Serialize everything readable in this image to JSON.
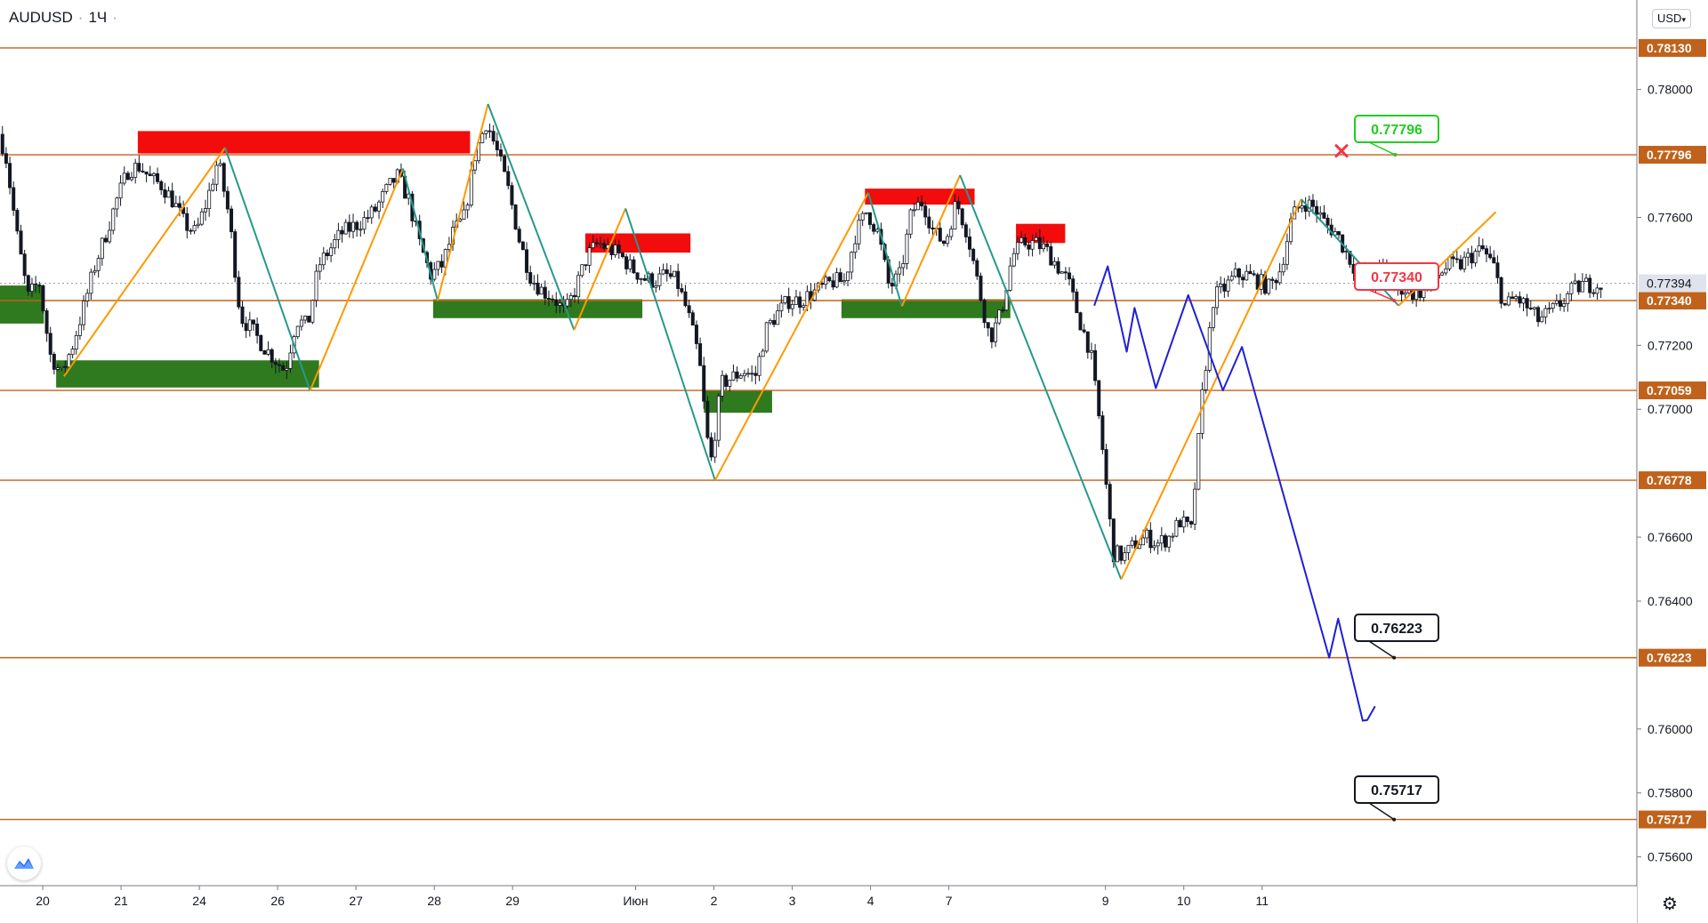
{
  "header": {
    "symbol": "AUDUSD",
    "interval": "1Ч",
    "currency": "USD"
  },
  "icons": {
    "settings": "gear-icon",
    "logo": "tradingview-logo-icon",
    "dropdown": "chevron-down-icon"
  },
  "chart_data": {
    "type": "candlestick",
    "ylim": [
      0.7551,
      0.7828
    ],
    "y_ticks": [
      "0.78000",
      "0.77600",
      "0.77200",
      "0.77000",
      "0.76600",
      "0.76400",
      "0.76000",
      "0.75800",
      "0.75600"
    ],
    "x_ticks": [
      "20",
      "21",
      "24",
      "26",
      "27",
      "28",
      "29",
      "Июн",
      "2",
      "3",
      "4",
      "7",
      "9",
      "10",
      "11"
    ],
    "colors": {
      "level": "#c0621b",
      "supply": "#f20c0c",
      "demand": "#2f7a1e",
      "up_wave": "#ff9800",
      "down_wave": "#26998a",
      "forecast": "#1f1fd6",
      "candle": "#131722"
    },
    "levels": [
      {
        "price": 0.7813,
        "label": "0.78130"
      },
      {
        "price": 0.77796,
        "label": "0.77796"
      },
      {
        "price": 0.7734,
        "label": "0.77340"
      },
      {
        "price": 0.77059,
        "label": "0.77059"
      },
      {
        "price": 0.76778,
        "label": "0.76778"
      },
      {
        "price": 0.76223,
        "label": "0.76223"
      },
      {
        "price": 0.75717,
        "label": "0.75717"
      }
    ],
    "current_price": {
      "price": 0.77394,
      "label": "0.77394"
    },
    "callouts": [
      {
        "text": "0.77796",
        "style": "green"
      },
      {
        "text": "0.77340",
        "style": "red"
      },
      {
        "text": "0.76223",
        "style": "black"
      },
      {
        "text": "0.75717",
        "style": "black"
      }
    ],
    "supply_zones": [
      {
        "from": 12.5,
        "to": 42.2,
        "high": 0.7787,
        "low": 0.778
      },
      {
        "from": 52.5,
        "to": 61.9,
        "high": 0.7755,
        "low": 0.7749
      },
      {
        "from": 77.5,
        "to": 87.3,
        "high": 0.7769,
        "low": 0.7764
      },
      {
        "from": 91.0,
        "to": 95.4,
        "high": 0.7758,
        "low": 0.7752
      }
    ],
    "demand_zones": [
      {
        "from": 0.0,
        "to": 4.1,
        "high": 0.77387,
        "low": 0.77268
      },
      {
        "from": 5.2,
        "to": 28.7,
        "high": 0.77153,
        "low": 0.77068
      },
      {
        "from": 38.9,
        "to": 57.6,
        "high": 0.77344,
        "low": 0.77285
      },
      {
        "from": 63.1,
        "to": 69.2,
        "high": 0.77059,
        "low": 0.76989
      },
      {
        "from": 75.4,
        "to": 90.5,
        "high": 0.77344,
        "low": 0.77285
      }
    ],
    "wave_points": [
      {
        "t": 5.9,
        "p": 0.77103
      },
      {
        "t": 20.3,
        "p": 0.77818
      },
      {
        "t": 27.9,
        "p": 0.77058
      },
      {
        "t": 36.2,
        "p": 0.77753
      },
      {
        "t": 39.3,
        "p": 0.7734
      },
      {
        "t": 43.8,
        "p": 0.77955
      },
      {
        "t": 51.5,
        "p": 0.77248
      },
      {
        "t": 56.1,
        "p": 0.77628
      },
      {
        "t": 64.1,
        "p": 0.76778
      },
      {
        "t": 77.8,
        "p": 0.77677
      },
      {
        "t": 80.8,
        "p": 0.77322
      },
      {
        "t": 86.0,
        "p": 0.77732
      },
      {
        "t": 90.5,
        "p": 0.7734
      },
      {
        "t": 100.4,
        "p": 0.76468
      },
      {
        "t": 116.5,
        "p": 0.77657
      },
      {
        "t": 125.2,
        "p": 0.77324
      },
      {
        "t": 133.9,
        "p": 0.77617
      }
    ],
    "forecast_path": [
      {
        "t": 98.0,
        "p": 0.77324
      },
      {
        "t": 99.2,
        "p": 0.77447
      },
      {
        "t": 100.9,
        "p": 0.7718
      },
      {
        "t": 101.6,
        "p": 0.77317
      },
      {
        "t": 103.5,
        "p": 0.77066
      },
      {
        "t": 106.4,
        "p": 0.77357
      },
      {
        "t": 109.5,
        "p": 0.77059
      },
      {
        "t": 111.2,
        "p": 0.77195
      },
      {
        "t": 119.0,
        "p": 0.76223
      },
      {
        "t": 119.8,
        "p": 0.76345
      },
      {
        "t": 122.0,
        "p": 0.76026
      },
      {
        "t": 122.4,
        "p": 0.76028
      },
      {
        "t": 123.1,
        "p": 0.76071
      }
    ],
    "price_series": [
      [
        0,
        0.779
      ],
      [
        1,
        0.778
      ],
      [
        2,
        0.7755
      ],
      [
        3,
        0.7735
      ],
      [
        4,
        0.774
      ],
      [
        5,
        0.7717
      ],
      [
        6,
        0.7711
      ],
      [
        7,
        0.772
      ],
      [
        8,
        0.7732
      ],
      [
        9,
        0.7745
      ],
      [
        10,
        0.7755
      ],
      [
        11,
        0.7766
      ],
      [
        12,
        0.7775
      ],
      [
        13,
        0.7776
      ],
      [
        14,
        0.7772
      ],
      [
        15,
        0.777
      ],
      [
        16,
        0.7765
      ],
      [
        17,
        0.7758
      ],
      [
        18,
        0.7755
      ],
      [
        19,
        0.7765
      ],
      [
        20,
        0.7778
      ],
      [
        21,
        0.776
      ],
      [
        22,
        0.7729
      ],
      [
        23,
        0.7725
      ],
      [
        24,
        0.772
      ],
      [
        25,
        0.7716
      ],
      [
        26,
        0.7712
      ],
      [
        27,
        0.7728
      ],
      [
        28,
        0.7726
      ],
      [
        29,
        0.7745
      ],
      [
        30,
        0.775
      ],
      [
        31,
        0.7755
      ],
      [
        32,
        0.7757
      ],
      [
        33,
        0.7759
      ],
      [
        34,
        0.7762
      ],
      [
        35,
        0.7768
      ],
      [
        36,
        0.7773
      ],
      [
        37,
        0.7766
      ],
      [
        38,
        0.7752
      ],
      [
        39,
        0.7742
      ],
      [
        40,
        0.7745
      ],
      [
        41,
        0.7755
      ],
      [
        42,
        0.776
      ],
      [
        43,
        0.778
      ],
      [
        44,
        0.779
      ],
      [
        45,
        0.778
      ],
      [
        46,
        0.7768
      ],
      [
        47,
        0.7752
      ],
      [
        48,
        0.7741
      ],
      [
        49,
        0.7737
      ],
      [
        50,
        0.7735
      ],
      [
        51,
        0.773
      ],
      [
        52,
        0.7738
      ],
      [
        53,
        0.7748
      ],
      [
        54,
        0.7752
      ],
      [
        55,
        0.775
      ],
      [
        56,
        0.7748
      ],
      [
        57,
        0.7744
      ],
      [
        58,
        0.7741
      ],
      [
        59,
        0.774
      ],
      [
        60,
        0.7742
      ],
      [
        61,
        0.774
      ],
      [
        62,
        0.773
      ],
      [
        63,
        0.7716
      ],
      [
        64,
        0.7682
      ],
      [
        65,
        0.7708
      ],
      [
        66,
        0.771
      ],
      [
        67,
        0.7712
      ],
      [
        68,
        0.771
      ],
      [
        69,
        0.7725
      ],
      [
        70,
        0.773
      ],
      [
        71,
        0.7734
      ],
      [
        72,
        0.7734
      ],
      [
        73,
        0.7736
      ],
      [
        74,
        0.7738
      ],
      [
        75,
        0.774
      ],
      [
        76,
        0.774
      ],
      [
        77,
        0.7755
      ],
      [
        78,
        0.7762
      ],
      [
        79,
        0.7755
      ],
      [
        80,
        0.7738
      ],
      [
        81,
        0.7742
      ],
      [
        82,
        0.7762
      ],
      [
        83,
        0.7765
      ],
      [
        84,
        0.7755
      ],
      [
        85,
        0.7752
      ],
      [
        86,
        0.7765
      ],
      [
        87,
        0.7755
      ],
      [
        88,
        0.7738
      ],
      [
        89,
        0.7722
      ],
      [
        90,
        0.773
      ],
      [
        91,
        0.7748
      ],
      [
        92,
        0.7752
      ],
      [
        93,
        0.7752
      ],
      [
        94,
        0.775
      ],
      [
        95,
        0.7745
      ],
      [
        96,
        0.774
      ],
      [
        97,
        0.7728
      ],
      [
        98,
        0.7718
      ],
      [
        99,
        0.769
      ],
      [
        100,
        0.7655
      ],
      [
        101,
        0.7654
      ],
      [
        102,
        0.7658
      ],
      [
        103,
        0.766
      ],
      [
        104,
        0.7658
      ],
      [
        105,
        0.766
      ],
      [
        106,
        0.7665
      ],
      [
        107,
        0.7662
      ],
      [
        108,
        0.7705
      ],
      [
        109,
        0.7735
      ],
      [
        110,
        0.7738
      ],
      [
        111,
        0.7742
      ],
      [
        112,
        0.7742
      ],
      [
        113,
        0.774
      ],
      [
        114,
        0.7738
      ],
      [
        115,
        0.7744
      ],
      [
        116,
        0.776
      ],
      [
        117,
        0.7765
      ],
      [
        118,
        0.7763
      ],
      [
        119,
        0.7758
      ],
      [
        120,
        0.7755
      ],
      [
        121,
        0.7748
      ],
      [
        122,
        0.7742
      ],
      [
        123,
        0.7738
      ],
      [
        124,
        0.7745
      ],
      [
        125,
        0.7738
      ],
      [
        126,
        0.7738
      ],
      [
        127,
        0.7736
      ],
      [
        128,
        0.7738
      ],
      [
        129,
        0.7742
      ],
      [
        130,
        0.7745
      ],
      [
        131,
        0.7745
      ],
      [
        132,
        0.7748
      ],
      [
        133,
        0.775
      ],
      [
        134,
        0.7745
      ],
      [
        135,
        0.7732
      ],
      [
        136,
        0.7735
      ],
      [
        137,
        0.7732
      ],
      [
        138,
        0.7728
      ],
      [
        139,
        0.773
      ],
      [
        140,
        0.7733
      ],
      [
        141,
        0.7737
      ],
      [
        142,
        0.7739
      ],
      [
        143,
        0.7739
      ]
    ]
  }
}
